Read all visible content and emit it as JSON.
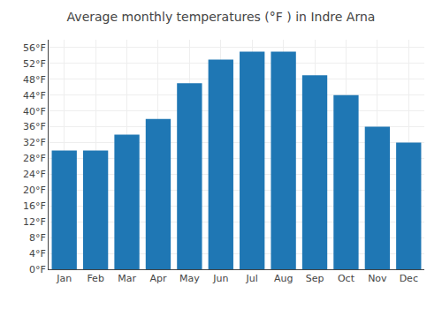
{
  "chart_data": {
    "type": "bar",
    "title": "Average monthly temperatures (°F ) in Indre Arna",
    "categories": [
      "Jan",
      "Feb",
      "Mar",
      "Apr",
      "May",
      "Jun",
      "Jul",
      "Aug",
      "Sep",
      "Oct",
      "Nov",
      "Dec"
    ],
    "values": [
      30,
      30,
      34,
      38,
      47,
      53,
      55,
      55,
      49,
      44,
      36,
      32
    ],
    "ylim": [
      0,
      58
    ],
    "yticks": [
      {
        "value": 0,
        "label": "0°F"
      },
      {
        "value": 4,
        "label": "4°F"
      },
      {
        "value": 8,
        "label": "8°F"
      },
      {
        "value": 12,
        "label": "12°F"
      },
      {
        "value": 16,
        "label": "16°F"
      },
      {
        "value": 20,
        "label": "20°F"
      },
      {
        "value": 24,
        "label": "24°F"
      },
      {
        "value": 28,
        "label": "28°F"
      },
      {
        "value": 32,
        "label": "32°F"
      },
      {
        "value": 36,
        "label": "36°F"
      },
      {
        "value": 40,
        "label": "40°F"
      },
      {
        "value": 44,
        "label": "44°F"
      },
      {
        "value": 48,
        "label": "48°F"
      },
      {
        "value": 52,
        "label": "52°F"
      },
      {
        "value": 56,
        "label": "56°F"
      }
    ],
    "grid": true
  }
}
